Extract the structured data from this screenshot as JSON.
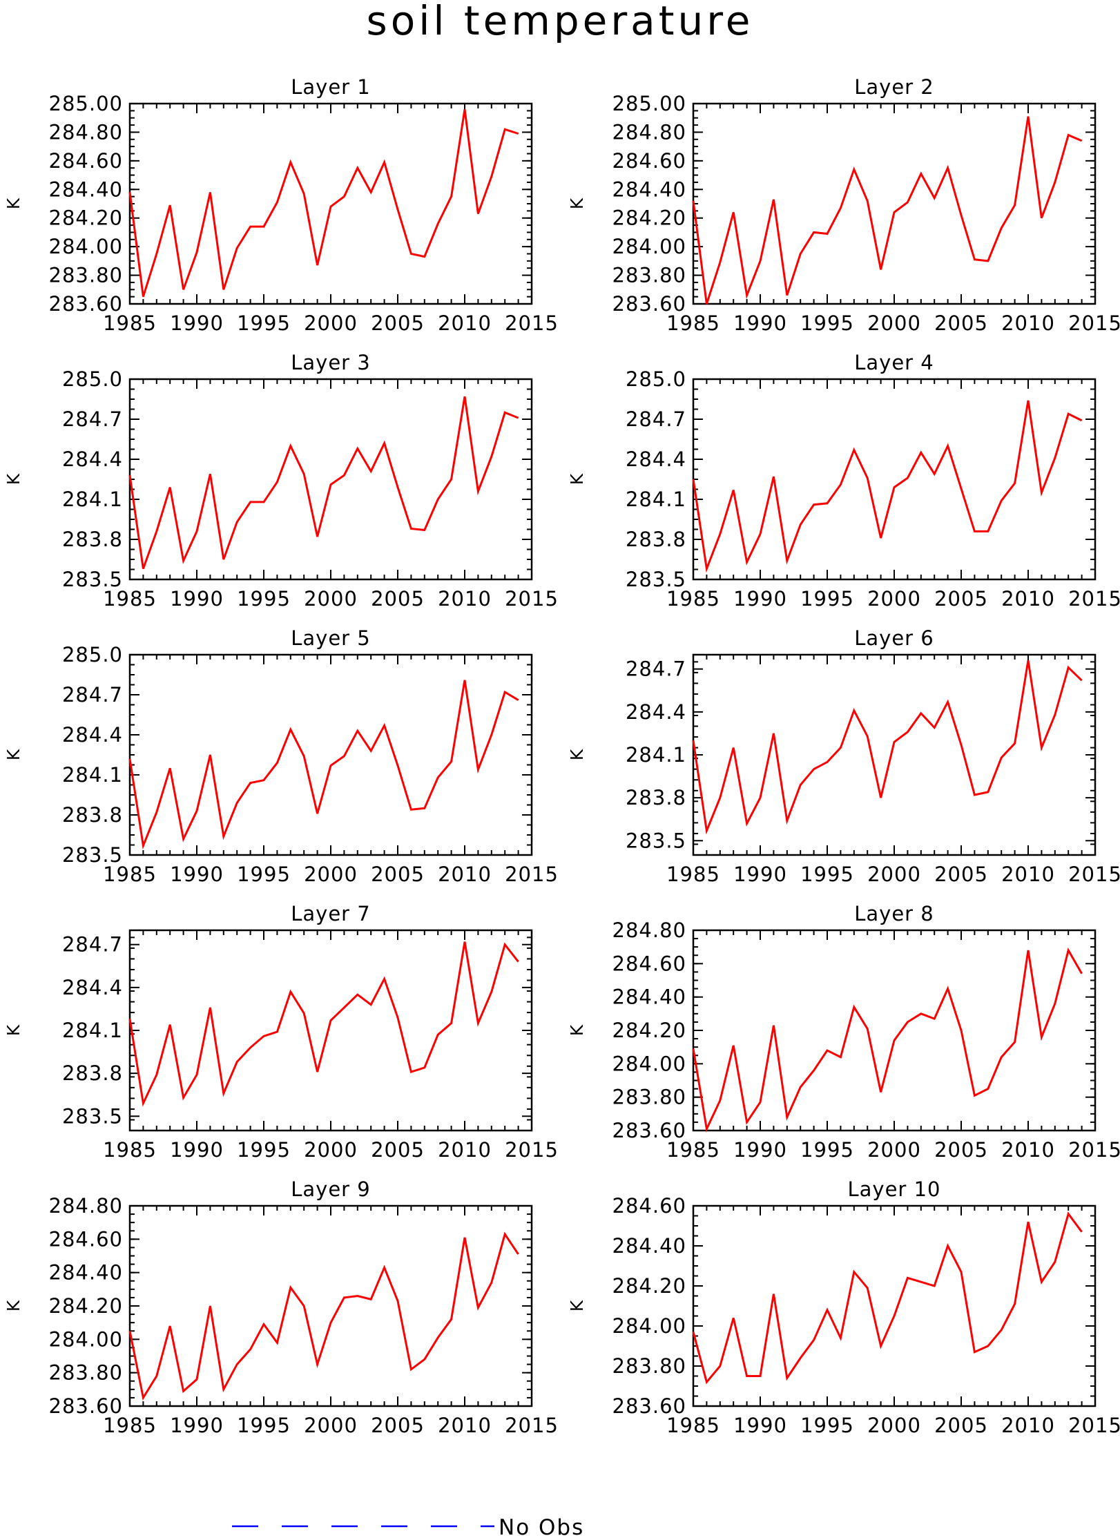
{
  "title": "soil temperature",
  "legend": {
    "label": "No Obs",
    "line_color": "#0000ff",
    "line_style": "dashed"
  },
  "series_color": "#ff0000",
  "chart_data": [
    {
      "type": "line",
      "title": "Layer 1",
      "ylabel": "K",
      "xlim": [
        1985,
        2015
      ],
      "ylim": [
        283.6,
        285.0
      ],
      "x_ticks": [
        1985,
        1990,
        1995,
        2000,
        2005,
        2010,
        2015
      ],
      "y_ticks": [
        "283.60",
        "283.80",
        "284.00",
        "284.20",
        "284.40",
        "284.60",
        "284.80",
        "285.00"
      ],
      "y_tick_values": [
        283.6,
        283.8,
        284.0,
        284.2,
        284.4,
        284.6,
        284.8,
        285.0
      ],
      "x": [
        1985,
        1986,
        1987,
        1988,
        1989,
        1990,
        1991,
        1992,
        1993,
        1994,
        1995,
        1996,
        1997,
        1998,
        1999,
        2000,
        2001,
        2002,
        2003,
        2004,
        2005,
        2006,
        2007,
        2008,
        2009,
        2010,
        2011,
        2012,
        2013,
        2014
      ],
      "y": [
        284.38,
        283.65,
        283.95,
        284.29,
        283.7,
        283.96,
        284.38,
        283.7,
        283.99,
        284.14,
        284.14,
        284.31,
        284.59,
        284.37,
        283.87,
        284.28,
        284.35,
        284.55,
        284.38,
        284.59,
        284.26,
        283.95,
        283.93,
        284.16,
        284.35,
        284.96,
        284.23,
        284.49,
        284.82,
        284.79
      ]
    },
    {
      "type": "line",
      "title": "Layer 2",
      "ylabel": "K",
      "xlim": [
        1985,
        2015
      ],
      "ylim": [
        283.6,
        285.0
      ],
      "x_ticks": [
        1985,
        1990,
        1995,
        2000,
        2005,
        2010,
        2015
      ],
      "y_ticks": [
        "283.60",
        "283.80",
        "284.00",
        "284.20",
        "284.40",
        "284.60",
        "284.80",
        "285.00"
      ],
      "y_tick_values": [
        283.6,
        283.8,
        284.0,
        284.2,
        284.4,
        284.6,
        284.8,
        285.0
      ],
      "x": [
        1985,
        1986,
        1987,
        1988,
        1989,
        1990,
        1991,
        1992,
        1993,
        1994,
        1995,
        1996,
        1997,
        1998,
        1999,
        2000,
        2001,
        2002,
        2003,
        2004,
        2005,
        2006,
        2007,
        2008,
        2009,
        2010,
        2011,
        2012,
        2013,
        2014
      ],
      "y": [
        284.32,
        283.6,
        283.89,
        284.24,
        283.66,
        283.9,
        284.33,
        283.66,
        283.95,
        284.1,
        284.09,
        284.27,
        284.54,
        284.32,
        283.84,
        284.24,
        284.31,
        284.51,
        284.34,
        284.55,
        284.22,
        283.91,
        283.9,
        284.13,
        284.29,
        284.91,
        284.2,
        284.45,
        284.78,
        284.74
      ]
    },
    {
      "type": "line",
      "title": "Layer 3",
      "ylabel": "K",
      "xlim": [
        1985,
        2015
      ],
      "ylim": [
        283.5,
        285.0
      ],
      "x_ticks": [
        1985,
        1990,
        1995,
        2000,
        2005,
        2010,
        2015
      ],
      "y_ticks": [
        "283.5",
        "283.8",
        "284.1",
        "284.4",
        "284.7",
        "285.0"
      ],
      "y_tick_values": [
        283.5,
        283.8,
        284.1,
        284.4,
        284.7,
        285.0
      ],
      "x": [
        1985,
        1986,
        1987,
        1988,
        1989,
        1990,
        1991,
        1992,
        1993,
        1994,
        1995,
        1996,
        1997,
        1998,
        1999,
        2000,
        2001,
        2002,
        2003,
        2004,
        2005,
        2006,
        2007,
        2008,
        2009,
        2010,
        2011,
        2012,
        2013,
        2014
      ],
      "y": [
        284.28,
        283.58,
        283.86,
        284.19,
        283.64,
        283.86,
        284.29,
        283.65,
        283.93,
        284.08,
        284.08,
        284.23,
        284.5,
        284.29,
        283.82,
        284.21,
        284.28,
        284.48,
        284.31,
        284.52,
        284.19,
        283.88,
        283.87,
        284.1,
        284.25,
        284.87,
        284.16,
        284.42,
        284.75,
        284.71
      ]
    },
    {
      "type": "line",
      "title": "Layer 4",
      "ylabel": "K",
      "xlim": [
        1985,
        2015
      ],
      "ylim": [
        283.5,
        285.0
      ],
      "x_ticks": [
        1985,
        1990,
        1995,
        2000,
        2005,
        2010,
        2015
      ],
      "y_ticks": [
        "283.5",
        "283.8",
        "284.1",
        "284.4",
        "284.7",
        "285.0"
      ],
      "y_tick_values": [
        283.5,
        283.8,
        284.1,
        284.4,
        284.7,
        285.0
      ],
      "x": [
        1985,
        1986,
        1987,
        1988,
        1989,
        1990,
        1991,
        1992,
        1993,
        1994,
        1995,
        1996,
        1997,
        1998,
        1999,
        2000,
        2001,
        2002,
        2003,
        2004,
        2005,
        2006,
        2007,
        2008,
        2009,
        2010,
        2011,
        2012,
        2013,
        2014
      ],
      "y": [
        284.25,
        283.58,
        283.84,
        284.17,
        283.63,
        283.84,
        284.27,
        283.64,
        283.91,
        284.06,
        284.07,
        284.21,
        284.47,
        284.26,
        283.81,
        284.19,
        284.26,
        284.45,
        284.29,
        284.5,
        284.18,
        283.86,
        283.86,
        284.09,
        284.22,
        284.84,
        284.15,
        284.41,
        284.74,
        284.69
      ]
    },
    {
      "type": "line",
      "title": "Layer 5",
      "ylabel": "K",
      "xlim": [
        1985,
        2015
      ],
      "ylim": [
        283.5,
        285.0
      ],
      "x_ticks": [
        1985,
        1990,
        1995,
        2000,
        2005,
        2010,
        2015
      ],
      "y_ticks": [
        "283.5",
        "283.8",
        "284.1",
        "284.4",
        "284.7",
        "285.0"
      ],
      "y_tick_values": [
        283.5,
        283.8,
        284.1,
        284.4,
        284.7,
        285.0
      ],
      "x": [
        1985,
        1986,
        1987,
        1988,
        1989,
        1990,
        1991,
        1992,
        1993,
        1994,
        1995,
        1996,
        1997,
        1998,
        1999,
        2000,
        2001,
        2002,
        2003,
        2004,
        2005,
        2006,
        2007,
        2008,
        2009,
        2010,
        2011,
        2012,
        2013,
        2014
      ],
      "y": [
        284.22,
        283.57,
        283.82,
        284.15,
        283.62,
        283.83,
        284.25,
        283.64,
        283.89,
        284.04,
        284.06,
        284.19,
        284.44,
        284.24,
        283.81,
        284.17,
        284.24,
        284.43,
        284.28,
        284.47,
        284.17,
        283.84,
        283.85,
        284.08,
        284.2,
        284.81,
        284.14,
        284.4,
        284.72,
        284.66
      ]
    },
    {
      "type": "line",
      "title": "Layer 6",
      "ylabel": "K",
      "xlim": [
        1985,
        2015
      ],
      "ylim": [
        283.4,
        284.8
      ],
      "x_ticks": [
        1985,
        1990,
        1995,
        2000,
        2005,
        2010,
        2015
      ],
      "y_ticks": [
        "283.5",
        "283.8",
        "284.1",
        "284.4",
        "284.7"
      ],
      "y_tick_values": [
        283.5,
        283.8,
        284.1,
        284.4,
        284.7
      ],
      "x": [
        1985,
        1986,
        1987,
        1988,
        1989,
        1990,
        1991,
        1992,
        1993,
        1994,
        1995,
        1996,
        1997,
        1998,
        1999,
        2000,
        2001,
        2002,
        2003,
        2004,
        2005,
        2006,
        2007,
        2008,
        2009,
        2010,
        2011,
        2012,
        2013,
        2014
      ],
      "y": [
        284.2,
        283.57,
        283.8,
        284.15,
        283.62,
        283.8,
        284.25,
        283.64,
        283.89,
        284.0,
        284.05,
        284.15,
        284.41,
        284.23,
        283.8,
        284.19,
        284.26,
        284.39,
        284.29,
        284.47,
        284.17,
        283.82,
        283.84,
        284.08,
        284.18,
        284.76,
        284.15,
        284.38,
        284.71,
        284.62
      ]
    },
    {
      "type": "line",
      "title": "Layer 7",
      "ylabel": "K",
      "xlim": [
        1985,
        2015
      ],
      "ylim": [
        283.4,
        284.8
      ],
      "x_ticks": [
        1985,
        1990,
        1995,
        2000,
        2005,
        2010,
        2015
      ],
      "y_ticks": [
        "283.5",
        "283.8",
        "284.1",
        "284.4",
        "284.7"
      ],
      "y_tick_values": [
        283.5,
        283.8,
        284.1,
        284.4,
        284.7
      ],
      "x": [
        1985,
        1986,
        1987,
        1988,
        1989,
        1990,
        1991,
        1992,
        1993,
        1994,
        1995,
        1996,
        1997,
        1998,
        1999,
        2000,
        2001,
        2002,
        2003,
        2004,
        2005,
        2006,
        2007,
        2008,
        2009,
        2010,
        2011,
        2012,
        2013,
        2014
      ],
      "y": [
        284.18,
        283.59,
        283.79,
        284.14,
        283.63,
        283.79,
        284.26,
        283.66,
        283.88,
        283.98,
        284.06,
        284.09,
        284.37,
        284.22,
        283.81,
        284.17,
        284.26,
        284.35,
        284.28,
        284.46,
        284.19,
        283.81,
        283.84,
        284.07,
        284.15,
        284.72,
        284.15,
        284.37,
        284.7,
        284.58
      ]
    },
    {
      "type": "line",
      "title": "Layer 8",
      "ylabel": "K",
      "xlim": [
        1985,
        2015
      ],
      "ylim": [
        283.6,
        284.8
      ],
      "x_ticks": [
        1985,
        1990,
        1995,
        2000,
        2005,
        2010,
        2015
      ],
      "y_ticks": [
        "283.60",
        "283.80",
        "284.00",
        "284.20",
        "284.40",
        "284.60",
        "284.80"
      ],
      "y_tick_values": [
        283.6,
        283.8,
        284.0,
        284.2,
        284.4,
        284.6,
        284.8
      ],
      "x": [
        1985,
        1986,
        1987,
        1988,
        1989,
        1990,
        1991,
        1992,
        1993,
        1994,
        1995,
        1996,
        1997,
        1998,
        1999,
        2000,
        2001,
        2002,
        2003,
        2004,
        2005,
        2006,
        2007,
        2008,
        2009,
        2010,
        2011,
        2012,
        2013,
        2014
      ],
      "y": [
        284.09,
        283.61,
        283.78,
        284.11,
        283.65,
        283.77,
        284.23,
        283.68,
        283.86,
        283.96,
        284.08,
        284.04,
        284.34,
        284.21,
        283.83,
        284.14,
        284.25,
        284.3,
        284.27,
        284.45,
        284.2,
        283.81,
        283.85,
        284.04,
        284.13,
        284.68,
        284.16,
        284.36,
        284.68,
        284.54
      ]
    },
    {
      "type": "line",
      "title": "Layer 9",
      "ylabel": "K",
      "xlim": [
        1985,
        2015
      ],
      "ylim": [
        283.6,
        284.8
      ],
      "x_ticks": [
        1985,
        1990,
        1995,
        2000,
        2005,
        2010,
        2015
      ],
      "y_ticks": [
        "283.60",
        "283.80",
        "284.00",
        "284.20",
        "284.40",
        "284.60",
        "284.80"
      ],
      "y_tick_values": [
        283.6,
        283.8,
        284.0,
        284.2,
        284.4,
        284.6,
        284.8
      ],
      "x": [
        1985,
        1986,
        1987,
        1988,
        1989,
        1990,
        1991,
        1992,
        1993,
        1994,
        1995,
        1996,
        1997,
        1998,
        1999,
        2000,
        2001,
        2002,
        2003,
        2004,
        2005,
        2006,
        2007,
        2008,
        2009,
        2010,
        2011,
        2012,
        2013,
        2014
      ],
      "y": [
        284.05,
        283.65,
        283.78,
        284.08,
        283.69,
        283.76,
        284.2,
        283.7,
        283.85,
        283.94,
        284.09,
        283.98,
        284.31,
        284.2,
        283.85,
        284.1,
        284.25,
        284.26,
        284.24,
        284.43,
        284.23,
        283.82,
        283.88,
        284.01,
        284.12,
        284.61,
        284.19,
        284.34,
        284.63,
        284.51
      ]
    },
    {
      "type": "line",
      "title": "Layer 10",
      "ylabel": "K",
      "xlim": [
        1985,
        2015
      ],
      "ylim": [
        283.6,
        284.6
      ],
      "x_ticks": [
        1985,
        1990,
        1995,
        2000,
        2005,
        2010,
        2015
      ],
      "y_ticks": [
        "283.60",
        "283.80",
        "284.00",
        "284.20",
        "284.40",
        "284.60"
      ],
      "y_tick_values": [
        283.6,
        283.8,
        284.0,
        284.2,
        284.4,
        284.6
      ],
      "x": [
        1985,
        1986,
        1987,
        1988,
        1989,
        1990,
        1991,
        1992,
        1993,
        1994,
        1995,
        1996,
        1997,
        1998,
        1999,
        2000,
        2001,
        2002,
        2003,
        2004,
        2005,
        2006,
        2007,
        2008,
        2009,
        2010,
        2011,
        2012,
        2013,
        2014
      ],
      "y": [
        283.97,
        283.72,
        283.8,
        284.04,
        283.75,
        283.75,
        284.16,
        283.74,
        283.84,
        283.93,
        284.08,
        283.94,
        284.27,
        284.19,
        283.9,
        284.05,
        284.24,
        284.22,
        284.2,
        284.4,
        284.27,
        283.87,
        283.9,
        283.98,
        284.11,
        284.52,
        284.22,
        284.32,
        284.56,
        284.47
      ]
    }
  ]
}
